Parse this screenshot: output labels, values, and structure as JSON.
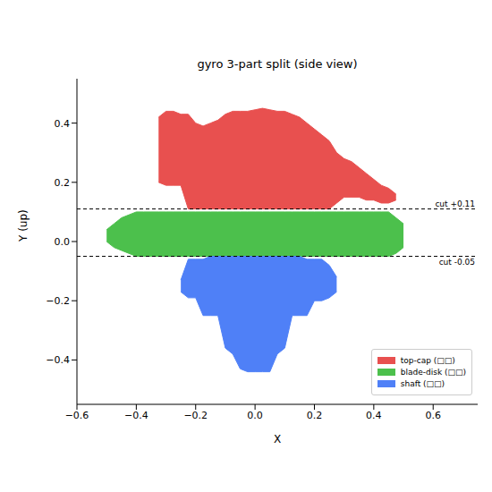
{
  "chart_data": {
    "type": "range_area",
    "title": "gyro 3-part split (side view)",
    "x_label": "X",
    "y_label": "Y (up)",
    "xlim": [
      -0.6,
      0.75
    ],
    "ylim": [
      -0.55,
      0.55
    ],
    "xticks": [
      {
        "value": -0.6,
        "label": "−0.6"
      },
      {
        "value": -0.4,
        "label": "−0.4"
      },
      {
        "value": -0.2,
        "label": "−0.2"
      },
      {
        "value": 0,
        "label": "0.0"
      },
      {
        "value": 0.2,
        "label": "0.2"
      },
      {
        "value": 0.4,
        "label": "0.4"
      },
      {
        "value": 0.6,
        "label": "0.6"
      }
    ],
    "yticks": [
      {
        "value": -0.4,
        "label": "−0.4"
      },
      {
        "value": -0.2,
        "label": "−0.2"
      },
      {
        "value": 0,
        "label": "0.0"
      },
      {
        "value": 0.2,
        "label": "0.2"
      },
      {
        "value": 0.4,
        "label": "0.4"
      }
    ],
    "legend": "lower right",
    "x": [
      -0.5,
      -0.475,
      -0.45,
      -0.425,
      -0.4,
      -0.375,
      -0.35,
      -0.325,
      -0.3,
      -0.275,
      -0.25,
      -0.225,
      -0.2,
      -0.175,
      -0.15,
      -0.125,
      -0.1,
      -0.075,
      -0.05,
      -0.025,
      0,
      0.025,
      0.05,
      0.075,
      0.1,
      0.125,
      0.15,
      0.175,
      0.2,
      0.225,
      0.25,
      0.275,
      0.3,
      0.325,
      0.35,
      0.375,
      0.4,
      0.425,
      0.45,
      0.475,
      0.5
    ],
    "series": [
      {
        "name": "top-cap (□□)",
        "color": "#e8504f",
        "values": [
          null,
          null,
          null,
          null,
          null,
          null,
          null,
          [
            0.2,
            0.42
          ],
          [
            0.19,
            0.44
          ],
          [
            0.19,
            0.44
          ],
          [
            0.19,
            0.43
          ],
          [
            0.11,
            0.43
          ],
          [
            0.11,
            0.4
          ],
          [
            0.11,
            0.39
          ],
          [
            0.11,
            0.4
          ],
          [
            0.11,
            0.41
          ],
          [
            0.11,
            0.43
          ],
          [
            0.11,
            0.44
          ],
          [
            0.11,
            0.44
          ],
          [
            0.11,
            0.44
          ],
          [
            0.11,
            0.445
          ],
          [
            0.11,
            0.45
          ],
          [
            0.11,
            0.445
          ],
          [
            0.11,
            0.44
          ],
          [
            0.11,
            0.44
          ],
          [
            0.11,
            0.43
          ],
          [
            0.11,
            0.42
          ],
          [
            0.11,
            0.4
          ],
          [
            0.11,
            0.38
          ],
          [
            0.11,
            0.36
          ],
          [
            0.11,
            0.34
          ],
          [
            0.13,
            0.3
          ],
          [
            0.15,
            0.28
          ],
          [
            0.15,
            0.27
          ],
          [
            0.15,
            0.25
          ],
          [
            0.14,
            0.23
          ],
          [
            0.14,
            0.21
          ],
          [
            0.13,
            0.19
          ],
          [
            0.13,
            0.18
          ],
          [
            0.14,
            0.16
          ],
          null
        ]
      },
      {
        "name": "blade-disk (□□)",
        "color": "#4cc04c",
        "values": [
          [
            0.0,
            0.04
          ],
          [
            -0.02,
            0.06
          ],
          [
            -0.03,
            0.08
          ],
          [
            -0.04,
            0.09
          ],
          [
            -0.05,
            0.1
          ],
          [
            -0.05,
            0.1
          ],
          [
            -0.05,
            0.1
          ],
          [
            -0.05,
            0.1
          ],
          [
            -0.05,
            0.1
          ],
          [
            -0.05,
            0.1
          ],
          [
            -0.05,
            0.1
          ],
          [
            -0.05,
            0.1
          ],
          [
            -0.05,
            0.1
          ],
          [
            -0.05,
            0.1
          ],
          [
            -0.05,
            0.1
          ],
          [
            -0.05,
            0.1
          ],
          [
            -0.05,
            0.1
          ],
          [
            -0.05,
            0.1
          ],
          [
            -0.05,
            0.1
          ],
          [
            -0.05,
            0.1
          ],
          [
            -0.05,
            0.1
          ],
          [
            -0.05,
            0.1
          ],
          [
            -0.05,
            0.1
          ],
          [
            -0.05,
            0.1
          ],
          [
            -0.05,
            0.1
          ],
          [
            -0.05,
            0.1
          ],
          [
            -0.05,
            0.1
          ],
          [
            -0.05,
            0.1
          ],
          [
            -0.05,
            0.1
          ],
          [
            -0.05,
            0.1
          ],
          [
            -0.05,
            0.1
          ],
          [
            -0.05,
            0.1
          ],
          [
            -0.05,
            0.1
          ],
          [
            -0.05,
            0.1
          ],
          [
            -0.05,
            0.1
          ],
          [
            -0.05,
            0.1
          ],
          [
            -0.05,
            0.1
          ],
          [
            -0.05,
            0.1
          ],
          [
            -0.05,
            0.1
          ],
          [
            -0.04,
            0.08
          ],
          [
            -0.02,
            0.06
          ]
        ]
      },
      {
        "name": "shaft (□□)",
        "color": "#4f80f7",
        "values": [
          null,
          null,
          null,
          null,
          null,
          null,
          null,
          null,
          null,
          null,
          [
            -0.17,
            -0.13
          ],
          [
            -0.19,
            -0.06
          ],
          [
            -0.19,
            -0.06
          ],
          [
            -0.25,
            -0.06
          ],
          [
            -0.25,
            -0.05
          ],
          [
            -0.25,
            -0.05
          ],
          [
            -0.36,
            -0.05
          ],
          [
            -0.38,
            -0.05
          ],
          [
            -0.43,
            -0.05
          ],
          [
            -0.44,
            -0.05
          ],
          [
            -0.44,
            -0.05
          ],
          [
            -0.44,
            -0.05
          ],
          [
            -0.44,
            -0.05
          ],
          [
            -0.38,
            -0.05
          ],
          [
            -0.36,
            -0.05
          ],
          [
            -0.25,
            -0.05
          ],
          [
            -0.25,
            -0.05
          ],
          [
            -0.25,
            -0.06
          ],
          [
            -0.2,
            -0.06
          ],
          [
            -0.2,
            -0.06
          ],
          [
            -0.19,
            -0.08
          ],
          [
            -0.17,
            -0.12
          ],
          null,
          null,
          null,
          null,
          null,
          null,
          null,
          null,
          null
        ]
      }
    ],
    "cuts": [
      {
        "y": 0.11,
        "label": "cut +0.11"
      },
      {
        "y": -0.05,
        "label": "cut -0.05"
      }
    ]
  }
}
